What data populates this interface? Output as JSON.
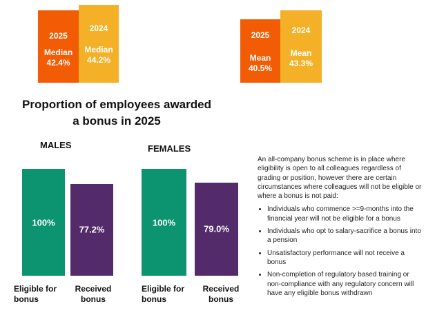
{
  "colors": {
    "year2025": "#f25c05",
    "year2024": "#f4b128",
    "eligible": "#0c936f",
    "received": "#532b6b"
  },
  "pay_gap": {
    "median": {
      "y2025": {
        "year": "2025",
        "label": "Median",
        "value": "42.4%"
      },
      "y2024": {
        "year": "2024",
        "label": "Median",
        "value": "44.2%"
      }
    },
    "mean": {
      "y2025": {
        "year": "2025",
        "label": "Mean",
        "value": "40.5%"
      },
      "y2024": {
        "year": "2024",
        "label": "Mean",
        "value": "43.3%"
      }
    }
  },
  "title": "Proportion of employees awarded a bonus in 2025",
  "chart_data": {
    "type": "bar",
    "title": "Proportion of employees awarded a bonus in 2025",
    "categories": [
      "Eligible for bonus",
      "Received bonus"
    ],
    "groups": [
      {
        "name": "MALES",
        "values": [
          100,
          77.2
        ],
        "labels": [
          "100%",
          "77.2%"
        ]
      },
      {
        "name": "FEMALES",
        "values": [
          100,
          79.0
        ],
        "labels": [
          "100%",
          "79.0%"
        ]
      }
    ]
  },
  "info": {
    "intro": "An all-company bonus scheme is in place where eligibility is open to all colleagues regardless of grading or position, however there are certain circumstances where colleagues will not be eligible or where a bonus is not paid:",
    "bullets": [
      "Individuals who commence >=9-months into the financial year will not be eligible for a bonus",
      "Individuals who opt to salary-sacrifice a bonus into a pension",
      "Unsatisfactory performance will not receive a bonus",
      "Non-completion of regulatory based training or non-compliance with any regulatory concern will have any eligible bonus withdrawn"
    ]
  }
}
